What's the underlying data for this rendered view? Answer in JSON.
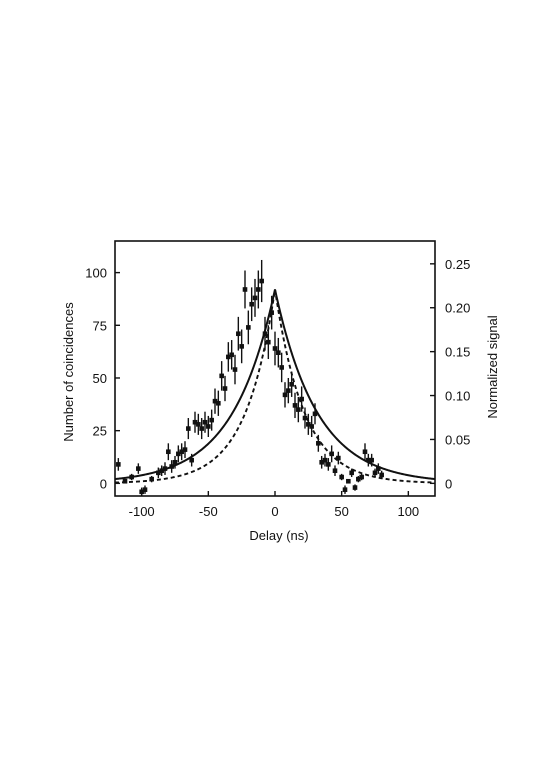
{
  "chart_data": {
    "type": "scatter",
    "xlabel": "Delay (ns)",
    "ylabel": "Number of coincidences",
    "y2label": "Normalized signal",
    "xlim": [
      -120,
      120
    ],
    "ylim": [
      -6,
      115
    ],
    "y2lim": [
      -0.0144,
      0.276
    ],
    "x_ticks": [
      -100,
      -50,
      0,
      50,
      100
    ],
    "x_tick_labels": [
      "-100",
      "-50",
      "0",
      "50",
      "100"
    ],
    "y_ticks": [
      0,
      25,
      50,
      75,
      100
    ],
    "y_tick_labels": [
      "0",
      "25",
      "50",
      "75",
      "100"
    ],
    "y2_ticks": [
      0,
      0.05,
      0.1,
      0.15,
      0.2,
      0.25
    ],
    "y2_tick_labels": [
      "0",
      "0.05",
      "0.10",
      "0.15",
      "0.20",
      "0.25"
    ],
    "grid": false,
    "legend": "none",
    "colors": {
      "frame": "#111111",
      "markers": "#111111",
      "fit_line": "#111111",
      "dashed_line": "#111111"
    },
    "series": [
      {
        "type": "scatter",
        "error_bars": true,
        "points": [
          {
            "x": -117.5,
            "y": 9,
            "err": 3
          },
          {
            "x": -112.5,
            "y": 1,
            "err": 1
          },
          {
            "x": -107.5,
            "y": 3,
            "err": 1.5
          },
          {
            "x": -102.5,
            "y": 7,
            "err": 2.5
          },
          {
            "x": -100,
            "y": -4,
            "err": 2
          },
          {
            "x": -97.5,
            "y": -3,
            "err": 2
          },
          {
            "x": -92.5,
            "y": 2,
            "err": 1.5
          },
          {
            "x": -87.5,
            "y": 5,
            "err": 2.5
          },
          {
            "x": -85,
            "y": 6,
            "err": 2.5
          },
          {
            "x": -82.5,
            "y": 7,
            "err": 3
          },
          {
            "x": -80,
            "y": 15,
            "err": 4
          },
          {
            "x": -77.5,
            "y": 8,
            "err": 3
          },
          {
            "x": -75,
            "y": 10,
            "err": 3
          },
          {
            "x": -72.5,
            "y": 14,
            "err": 4
          },
          {
            "x": -70,
            "y": 15,
            "err": 4
          },
          {
            "x": -67.5,
            "y": 16,
            "err": 4
          },
          {
            "x": -65,
            "y": 26,
            "err": 5
          },
          {
            "x": -62.5,
            "y": 11,
            "err": 3
          },
          {
            "x": -60,
            "y": 29,
            "err": 5
          },
          {
            "x": -57.5,
            "y": 28,
            "err": 5
          },
          {
            "x": -55,
            "y": 26,
            "err": 5
          },
          {
            "x": -52.5,
            "y": 29,
            "err": 5
          },
          {
            "x": -50,
            "y": 27,
            "err": 5
          },
          {
            "x": -47.5,
            "y": 30,
            "err": 5
          },
          {
            "x": -45,
            "y": 39,
            "err": 6
          },
          {
            "x": -42.5,
            "y": 38,
            "err": 6
          },
          {
            "x": -40,
            "y": 51,
            "err": 7
          },
          {
            "x": -37.5,
            "y": 45,
            "err": 6
          },
          {
            "x": -35,
            "y": 60,
            "err": 7
          },
          {
            "x": -32.5,
            "y": 61,
            "err": 7
          },
          {
            "x": -30,
            "y": 54,
            "err": 7
          },
          {
            "x": -27.5,
            "y": 71,
            "err": 8
          },
          {
            "x": -25,
            "y": 65,
            "err": 8
          },
          {
            "x": -22.5,
            "y": 92,
            "err": 9
          },
          {
            "x": -20,
            "y": 74,
            "err": 8
          },
          {
            "x": -17.5,
            "y": 85,
            "err": 8
          },
          {
            "x": -15,
            "y": 88,
            "err": 9
          },
          {
            "x": -12.5,
            "y": 92,
            "err": 9
          },
          {
            "x": -10,
            "y": 96,
            "err": 10
          },
          {
            "x": -7.5,
            "y": 71,
            "err": 8
          },
          {
            "x": -5,
            "y": 67,
            "err": 8
          },
          {
            "x": -2.5,
            "y": 81,
            "err": 8
          },
          {
            "x": 0,
            "y": 64,
            "err": 8
          },
          {
            "x": 2.5,
            "y": 62,
            "err": 7
          },
          {
            "x": 5,
            "y": 55,
            "err": 7
          },
          {
            "x": 7.5,
            "y": 42,
            "err": 6
          },
          {
            "x": 10,
            "y": 44,
            "err": 6
          },
          {
            "x": 12.5,
            "y": 47,
            "err": 6
          },
          {
            "x": 15,
            "y": 37,
            "err": 6
          },
          {
            "x": 17.5,
            "y": 35,
            "err": 6
          },
          {
            "x": 20,
            "y": 40,
            "err": 6
          },
          {
            "x": 22.5,
            "y": 31,
            "err": 5
          },
          {
            "x": 25,
            "y": 28,
            "err": 5
          },
          {
            "x": 27.5,
            "y": 27,
            "err": 5
          },
          {
            "x": 30,
            "y": 33,
            "err": 5
          },
          {
            "x": 32.5,
            "y": 19,
            "err": 4
          },
          {
            "x": 35,
            "y": 10,
            "err": 3
          },
          {
            "x": 37.5,
            "y": 11,
            "err": 3
          },
          {
            "x": 40,
            "y": 9,
            "err": 3
          },
          {
            "x": 42.5,
            "y": 14,
            "err": 4
          },
          {
            "x": 45,
            "y": 6,
            "err": 2.5
          },
          {
            "x": 47.5,
            "y": 12,
            "err": 3
          },
          {
            "x": 50,
            "y": 3,
            "err": 1.5
          },
          {
            "x": 52.5,
            "y": -3,
            "err": 2
          },
          {
            "x": 55,
            "y": 1,
            "err": 1
          },
          {
            "x": 57.5,
            "y": 5,
            "err": 2
          },
          {
            "x": 60,
            "y": -2,
            "err": 1.5
          },
          {
            "x": 62.5,
            "y": 2,
            "err": 1.5
          },
          {
            "x": 65,
            "y": 3,
            "err": 1.5
          },
          {
            "x": 67.5,
            "y": 15,
            "err": 4
          },
          {
            "x": 70,
            "y": 11,
            "err": 3
          },
          {
            "x": 72.5,
            "y": 11,
            "err": 3
          },
          {
            "x": 75,
            "y": 5,
            "err": 2
          },
          {
            "x": 77.5,
            "y": 7,
            "err": 2.5
          },
          {
            "x": 80,
            "y": 4,
            "err": 2
          }
        ]
      },
      {
        "type": "line",
        "style": "solid",
        "decay_ns": 31.5,
        "amplitude": 92,
        "center": 0
      },
      {
        "type": "line",
        "style": "dashed",
        "decay_ns": 22,
        "amplitude": 92,
        "center": 0
      }
    ]
  }
}
